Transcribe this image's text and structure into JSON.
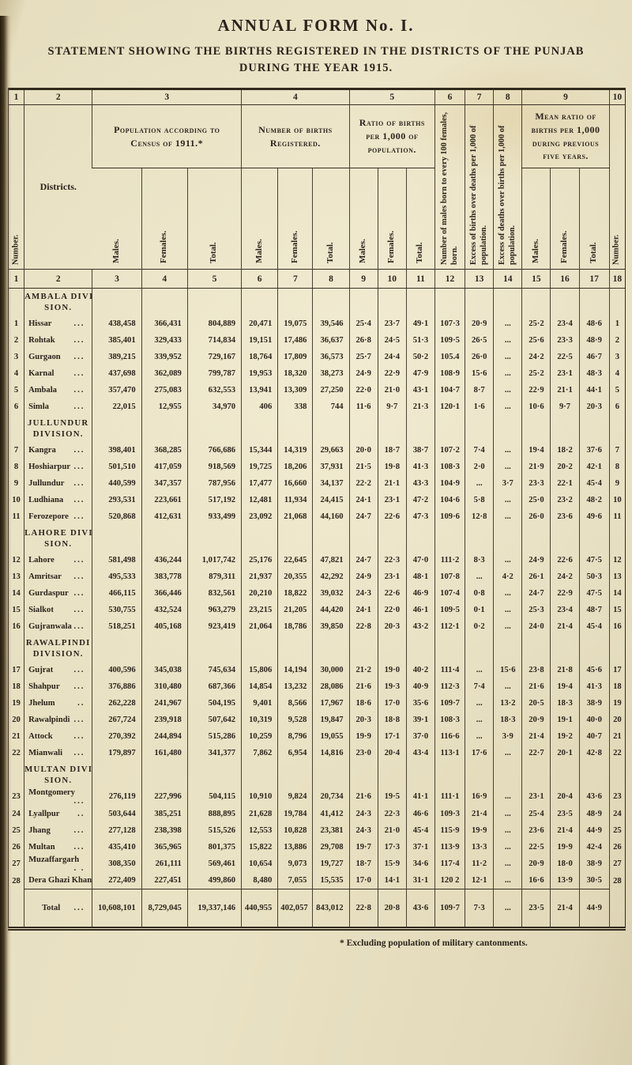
{
  "page": {
    "title": "ANNUAL FORM No. I.",
    "subtitle_line1": "STATEMENT SHOWING THE BIRTHS REGISTERED IN THE DISTRICTS OF THE PUNJAB",
    "subtitle_line2": "DURING THE YEAR 1915.",
    "footnote": "* Excluding population of military cantonments."
  },
  "table": {
    "group_numbers": [
      "1",
      "2",
      "3",
      "4",
      "5",
      "6",
      "7",
      "8",
      "9",
      "10"
    ],
    "column_numbers": [
      "1",
      "2",
      "3",
      "4",
      "5",
      "6",
      "7",
      "8",
      "9",
      "10",
      "11",
      "12",
      "13",
      "14",
      "15",
      "16",
      "17",
      "18"
    ],
    "headers": {
      "number": "Number.",
      "districts": "Districts.",
      "population_group": "Population according to Census of 1911.*",
      "births_group": "Number of births Registered.",
      "ratio_group": "Ratio of births per 1,000 of population.",
      "males_per_100_females": "Number of males born to every 100 females, born.",
      "excess_births_over_deaths": "Excess of births over deaths per 1,000 of population.",
      "excess_deaths_over_births": "Excess of deaths over births per 1,000 of population.",
      "mean_ratio_group": "Mean ratio of births per 1,000 during previous five years.",
      "sub_males": "Males.",
      "sub_females": "Females.",
      "sub_total": "Total."
    },
    "rows": [
      {
        "type": "division",
        "line1": "AMBALA DIVI-",
        "line2": "SION."
      },
      {
        "type": "data",
        "num": "1",
        "district": "Hissar",
        "leader": "...",
        "cells": [
          "438,458",
          "366,431",
          "804,889",
          "20,471",
          "19,075",
          "39,546",
          "25·4",
          "23·7",
          "49·1",
          "107·3",
          "20·9",
          "...",
          "25·2",
          "23·4",
          "48·6"
        ]
      },
      {
        "type": "data",
        "num": "2",
        "district": "Rohtak",
        "leader": "...",
        "cells": [
          "385,401",
          "329,433",
          "714,834",
          "19,151",
          "17,486",
          "36,637",
          "26·8",
          "24·5",
          "51·3",
          "109·5",
          "26·5",
          "...",
          "25·6",
          "23·3",
          "48·9"
        ]
      },
      {
        "type": "data",
        "num": "3",
        "district": "Gurgaon",
        "leader": "...",
        "cells": [
          "389,215",
          "339,952",
          "729,167",
          "18,764",
          "17,809",
          "36,573",
          "25·7",
          "24·4",
          "50·2",
          "105.4",
          "26·0",
          "...",
          "24·2",
          "22·5",
          "46·7"
        ]
      },
      {
        "type": "data",
        "num": "4",
        "district": "Karnal",
        "leader": "...",
        "cells": [
          "437,698",
          "362,089",
          "799,787",
          "19,953",
          "18,320",
          "38,273",
          "24·9",
          "22·9",
          "47·9",
          "108·9",
          "15·6",
          "...",
          "25·2",
          "23·1",
          "48·3"
        ]
      },
      {
        "type": "data",
        "num": "5",
        "district": "Ambala",
        "leader": "...",
        "cells": [
          "357,470",
          "275,083",
          "632,553",
          "13,941",
          "13,309",
          "27,250",
          "22·0",
          "21·0",
          "43·1",
          "104·7",
          "8·7",
          "...",
          "22·9",
          "21·1",
          "44·1"
        ]
      },
      {
        "type": "data",
        "num": "6",
        "district": "Simla",
        "leader": "...",
        "cells": [
          "22,015",
          "12,955",
          "34,970",
          "406",
          "338",
          "744",
          "11·6",
          "9·7",
          "21·3",
          "120·1",
          "1·6",
          "...",
          "10·6",
          "9·7",
          "20·3"
        ]
      },
      {
        "type": "division",
        "line1": "JULLUNDUR",
        "line2": "DIVISION."
      },
      {
        "type": "data",
        "num": "7",
        "district": "Kangra",
        "leader": "...",
        "cells": [
          "398,401",
          "368,285",
          "766,686",
          "15,344",
          "14,319",
          "29,663",
          "20·0",
          "18·7",
          "38·7",
          "107·2",
          "7·4",
          "...",
          "19·4",
          "18·2",
          "37·6"
        ]
      },
      {
        "type": "data",
        "num": "8",
        "district": "Hoshiarpur",
        "leader": "...",
        "cells": [
          "501,510",
          "417,059",
          "918,569",
          "19,725",
          "18,206",
          "37,931",
          "21·5",
          "19·8",
          "41·3",
          "108·3",
          "2·0",
          "...",
          "21·9",
          "20·2",
          "42·1"
        ]
      },
      {
        "type": "data",
        "num": "9",
        "district": "Jullundur",
        "leader": "...",
        "cells": [
          "440,599",
          "347,357",
          "787,956",
          "17,477",
          "16,660",
          "34,137",
          "22·2",
          "21·1",
          "43·3",
          "104·9",
          "...",
          "3·7",
          "23·3",
          "22·1",
          "45·4"
        ]
      },
      {
        "type": "data",
        "num": "10",
        "district": "Ludhiana",
        "leader": "...",
        "cells": [
          "293,531",
          "223,661",
          "517,192",
          "12,481",
          "11,934",
          "24,415",
          "24·1",
          "23·1",
          "47·2",
          "104·6",
          "5·8",
          "...",
          "25·0",
          "23·2",
          "48·2"
        ]
      },
      {
        "type": "data",
        "num": "11",
        "district": "Ferozepore",
        "leader": "...",
        "cells": [
          "520,868",
          "412,631",
          "933,499",
          "23,092",
          "21,068",
          "44,160",
          "24·7",
          "22·6",
          "47·3",
          "109·6",
          "12·8",
          "...",
          "26·0",
          "23·6",
          "49·6"
        ]
      },
      {
        "type": "division",
        "line1": "LAHORE DIVI-",
        "line2": "SION."
      },
      {
        "type": "data",
        "num": "12",
        "district": "Lahore",
        "leader": "...",
        "cells": [
          "581,498",
          "436,244",
          "1,017,742",
          "25,176",
          "22,645",
          "47,821",
          "24·7",
          "22·3",
          "47·0",
          "111·2",
          "8·3",
          "...",
          "24·9",
          "22·6",
          "47·5"
        ]
      },
      {
        "type": "data",
        "num": "13",
        "district": "Amritsar",
        "leader": "...",
        "cells": [
          "495,533",
          "383,778",
          "879,311",
          "21,937",
          "20,355",
          "42,292",
          "24·9",
          "23·1",
          "48·1",
          "107·8",
          "...",
          "4·2",
          "26·1",
          "24·2",
          "50·3"
        ]
      },
      {
        "type": "data",
        "num": "14",
        "district": "Gurdaspur",
        "leader": "...",
        "cells": [
          "466,115",
          "366,446",
          "832,561",
          "20,210",
          "18,822",
          "39,032",
          "24·3",
          "22·6",
          "46·9",
          "107·4",
          "0·8",
          "...",
          "24·7",
          "22·9",
          "47·5"
        ]
      },
      {
        "type": "data",
        "num": "15",
        "district": "Sialkot",
        "leader": "...",
        "cells": [
          "530,755",
          "432,524",
          "963,279",
          "23,215",
          "21,205",
          "44,420",
          "24·1",
          "22·0",
          "46·1",
          "109·5",
          "0·1",
          "...",
          "25·3",
          "23·4",
          "48·7"
        ]
      },
      {
        "type": "data",
        "num": "16",
        "district": "Gujranwala",
        "leader": "...",
        "cells": [
          "518,251",
          "405,168",
          "923,419",
          "21,064",
          "18,786",
          "39,850",
          "22·8",
          "20·3",
          "43·2",
          "112·1",
          "0·2",
          "...",
          "24·0",
          "21·4",
          "45·4"
        ]
      },
      {
        "type": "division",
        "line1": "RAWALPINDI",
        "line2": "DIVISION."
      },
      {
        "type": "data",
        "num": "17",
        "district": "Gujrat",
        "leader": "...",
        "cells": [
          "400,596",
          "345,038",
          "745,634",
          "15,806",
          "14,194",
          "30,000",
          "21·2",
          "19·0",
          "40·2",
          "111·4",
          "...",
          "15·6",
          "23·8",
          "21·8",
          "45·6"
        ]
      },
      {
        "type": "data",
        "num": "18",
        "district": "Shahpur",
        "leader": "...",
        "cells": [
          "376,886",
          "310,480",
          "687,366",
          "14,854",
          "13,232",
          "28,086",
          "21·6",
          "19·3",
          "40·9",
          "112·3",
          "7·4",
          "...",
          "21·6",
          "19·4",
          "41·3"
        ]
      },
      {
        "type": "data",
        "num": "19",
        "district": "Jhelum",
        "leader": "..",
        "cells": [
          "262,228",
          "241,967",
          "504,195",
          "9,401",
          "8,566",
          "17,967",
          "18·6",
          "17·0",
          "35·6",
          "109·7",
          "...",
          "13·2",
          "20·5",
          "18·3",
          "38·9"
        ]
      },
      {
        "type": "data",
        "num": "20",
        "district": "Rawalpindi",
        "leader": "...",
        "cells": [
          "267,724",
          "239,918",
          "507,642",
          "10,319",
          "9,528",
          "19,847",
          "20·3",
          "18·8",
          "39·1",
          "108·3",
          "...",
          "18·3",
          "20·9",
          "19·1",
          "40·0"
        ]
      },
      {
        "type": "data",
        "num": "21",
        "district": "Attock",
        "leader": "...",
        "cells": [
          "270,392",
          "244,894",
          "515,286",
          "10,259",
          "8,796",
          "19,055",
          "19·9",
          "17·1",
          "37·0",
          "116·6",
          "...",
          "3·9",
          "21·4",
          "19·2",
          "40·7"
        ]
      },
      {
        "type": "data",
        "num": "22",
        "district": "Mianwali",
        "leader": "...",
        "cells": [
          "179,897",
          "161,480",
          "341,377",
          "7,862",
          "6,954",
          "14,816",
          "23·0",
          "20·4",
          "43·4",
          "113·1",
          "17·6",
          "...",
          "22·7",
          "20·1",
          "42·8"
        ]
      },
      {
        "type": "division",
        "line1": "MULTAN DIVI-",
        "line2": "SION."
      },
      {
        "type": "data",
        "num": "23",
        "district": "Montgomery",
        "leader": "...",
        "cells": [
          "276,119",
          "227,996",
          "504,115",
          "10,910",
          "9,824",
          "20,734",
          "21·6",
          "19·5",
          "41·1",
          "111·1",
          "16·9",
          "...",
          "23·1",
          "20·4",
          "43·6"
        ]
      },
      {
        "type": "data",
        "num": "24",
        "district": "Lyallpur",
        "leader": "..",
        "cells": [
          "503,644",
          "385,251",
          "888,895",
          "21,628",
          "19,784",
          "41,412",
          "24·3",
          "22·3",
          "46·6",
          "109·3",
          "21·4",
          "...",
          "25·4",
          "23·5",
          "48·9"
        ]
      },
      {
        "type": "data",
        "num": "25",
        "district": "Jhang",
        "leader": "...",
        "cells": [
          "277,128",
          "238,398",
          "515,526",
          "12,553",
          "10,828",
          "23,381",
          "24·3",
          "21·0",
          "45·4",
          "115·9",
          "19·9",
          "...",
          "23·6",
          "21·4",
          "44·9"
        ]
      },
      {
        "type": "data",
        "num": "26",
        "district": "Multan",
        "leader": "...",
        "cells": [
          "435,410",
          "365,965",
          "801,375",
          "15,822",
          "13,886",
          "29,708",
          "19·7",
          "17·3",
          "37·1",
          "113·9",
          "13·3",
          "...",
          "22·5",
          "19·9",
          "42·4"
        ]
      },
      {
        "type": "data",
        "num": "27",
        "district": "Muzaffargarh",
        "leader": ". .",
        "cells": [
          "308,350",
          "261,111",
          "569,461",
          "10,654",
          "9,073",
          "19,727",
          "18·7",
          "15·9",
          "34·6",
          "117·4",
          "11·2",
          "...",
          "20·9",
          "18·0",
          "38·9"
        ]
      },
      {
        "type": "data",
        "num": "28",
        "district": "Dera Ghazi Khan",
        "leader": "",
        "cells": [
          "272,409",
          "227,451",
          "499,860",
          "8,480",
          "7,055",
          "15,535",
          "17·0",
          "14·1",
          "31·1",
          "120 2",
          "12·1",
          "...",
          "16·6",
          "13·9",
          "30·5"
        ]
      },
      {
        "type": "total",
        "num": "",
        "label": "Total",
        "leader": "...",
        "cells": [
          "10,608,101",
          "8,729,045",
          "19,337,146",
          "440,955",
          "402,057",
          "843,012",
          "22·8",
          "20·8",
          "43·6",
          "109·7",
          "7·3",
          "...",
          "23·5",
          "21·4",
          "44·9"
        ]
      }
    ]
  }
}
